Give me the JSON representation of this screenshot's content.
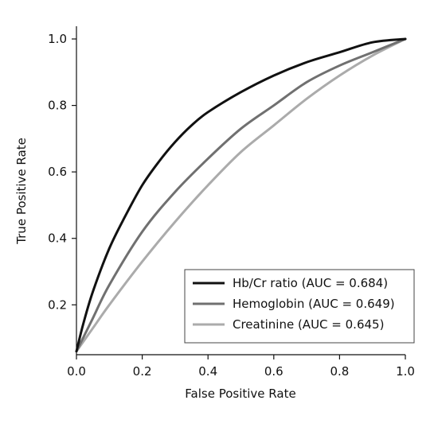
{
  "chart_data": {
    "type": "line",
    "title": "",
    "xlabel": "False Positive Rate",
    "ylabel": "True Positive Rate",
    "xlim": [
      0.0,
      1.0
    ],
    "ylim": [
      0.05,
      1.0
    ],
    "xticks": [
      "0.0",
      "0.2",
      "0.4",
      "0.6",
      "0.8",
      "1.0"
    ],
    "yticks": [
      "0.2",
      "0.4",
      "0.6",
      "0.8",
      "1.0"
    ],
    "grid": false,
    "legend_position": "bottom-right",
    "series": [
      {
        "name": "Hb/Cr ratio (AUC = 0.684)",
        "color": "#111111",
        "points": [
          [
            0.0,
            0.06
          ],
          [
            0.02,
            0.14
          ],
          [
            0.05,
            0.24
          ],
          [
            0.1,
            0.37
          ],
          [
            0.15,
            0.47
          ],
          [
            0.2,
            0.56
          ],
          [
            0.25,
            0.63
          ],
          [
            0.3,
            0.69
          ],
          [
            0.35,
            0.74
          ],
          [
            0.4,
            0.78
          ],
          [
            0.5,
            0.84
          ],
          [
            0.6,
            0.89
          ],
          [
            0.7,
            0.93
          ],
          [
            0.8,
            0.96
          ],
          [
            0.9,
            0.99
          ],
          [
            1.0,
            1.0
          ]
        ]
      },
      {
        "name": "Hemoglobin (AUC = 0.649)",
        "color": "#707070",
        "points": [
          [
            0.0,
            0.06
          ],
          [
            0.05,
            0.16
          ],
          [
            0.1,
            0.26
          ],
          [
            0.2,
            0.42
          ],
          [
            0.3,
            0.54
          ],
          [
            0.4,
            0.64
          ],
          [
            0.5,
            0.73
          ],
          [
            0.6,
            0.8
          ],
          [
            0.7,
            0.87
          ],
          [
            0.8,
            0.92
          ],
          [
            0.9,
            0.96
          ],
          [
            1.0,
            1.0
          ]
        ]
      },
      {
        "name": "Creatinine (AUC = 0.645)",
        "color": "#ababab",
        "points": [
          [
            0.0,
            0.06
          ],
          [
            0.05,
            0.13
          ],
          [
            0.1,
            0.2
          ],
          [
            0.2,
            0.33
          ],
          [
            0.3,
            0.45
          ],
          [
            0.4,
            0.56
          ],
          [
            0.5,
            0.66
          ],
          [
            0.6,
            0.74
          ],
          [
            0.7,
            0.82
          ],
          [
            0.8,
            0.89
          ],
          [
            0.9,
            0.95
          ],
          [
            1.0,
            1.0
          ]
        ]
      }
    ]
  }
}
